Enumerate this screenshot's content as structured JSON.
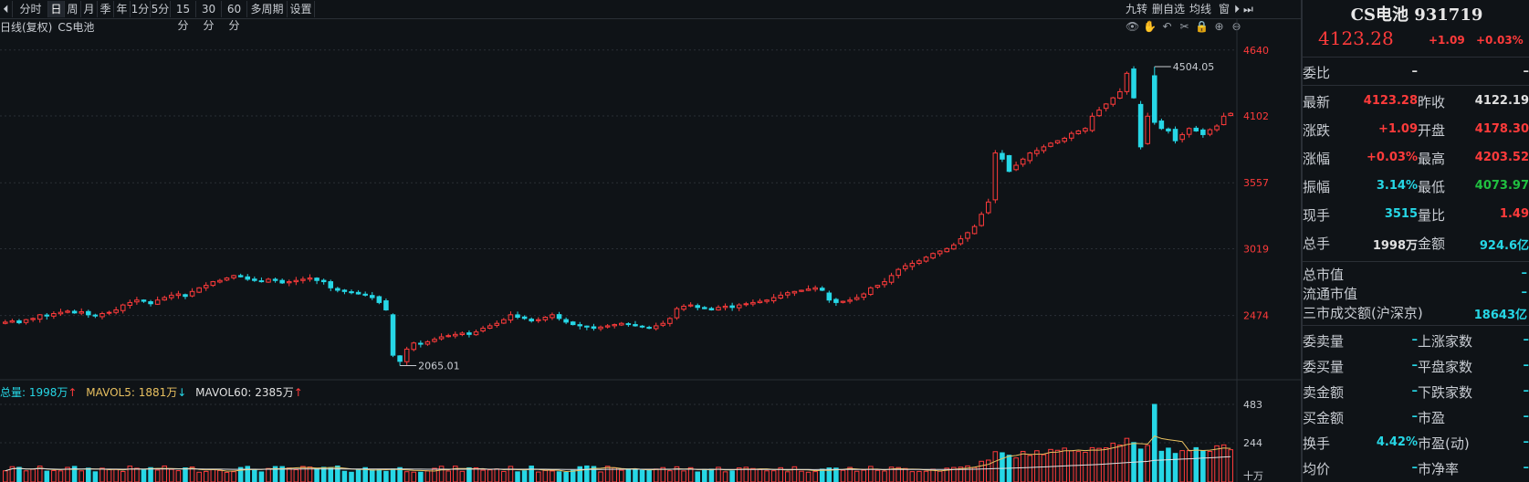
{
  "toolbar": {
    "items": [
      "分时",
      "日",
      "周",
      "月",
      "季",
      "年",
      "1分",
      "5分",
      "15分",
      "30分",
      "60分",
      "多周期",
      "设置"
    ],
    "active_index": 1,
    "right_items": [
      "九转",
      "删自选",
      "均线",
      "窗"
    ]
  },
  "chart": {
    "title": "日线(复权)",
    "subtitle": "CS电池",
    "icons": [
      "eye-icon",
      "hand-icon",
      "undo-icon",
      "scissors-icon",
      "lock-icon",
      "zoom-in-icon",
      "zoom-out-icon"
    ],
    "up_color": "#ff3b3b",
    "down_color": "#26d7e6",
    "max_label": "4504.05",
    "min_label": "2065.01"
  },
  "volume": {
    "total_label": "总量: 1998万",
    "total_arrow": "↑",
    "mavol5_label": "MAVOL5: 1881万",
    "mavol5_arrow": "↓",
    "mavol60_label": "MAVOL60: 2385万",
    "mavol60_arrow": "↑",
    "unit_label": "十万"
  },
  "chart_data": {
    "type": "candlestick",
    "price_axis_ticks": [
      4640,
      4102,
      3557,
      3019,
      2474
    ],
    "volume_axis_ticks": [
      483,
      244
    ],
    "price_range": [
      1950,
      4780
    ],
    "volume_range": [
      0,
      500
    ],
    "closes": [
      2420,
      2430,
      2415,
      2440,
      2450,
      2480,
      2470,
      2490,
      2500,
      2510,
      2495,
      2505,
      2480,
      2470,
      2490,
      2500,
      2520,
      2560,
      2580,
      2600,
      2590,
      2570,
      2600,
      2620,
      2640,
      2650,
      2630,
      2670,
      2700,
      2720,
      2750,
      2760,
      2780,
      2800,
      2790,
      2770,
      2760,
      2750,
      2770,
      2760,
      2740,
      2750,
      2760,
      2770,
      2780,
      2760,
      2750,
      2700,
      2680,
      2670,
      2660,
      2650,
      2640,
      2620,
      2580,
      2520,
      2150,
      2100,
      2200,
      2250,
      2240,
      2260,
      2280,
      2300,
      2310,
      2320,
      2330,
      2320,
      2340,
      2370,
      2390,
      2410,
      2440,
      2480,
      2460,
      2450,
      2430,
      2440,
      2460,
      2480,
      2450,
      2420,
      2400,
      2390,
      2380,
      2370,
      2380,
      2390,
      2400,
      2410,
      2400,
      2390,
      2380,
      2370,
      2390,
      2410,
      2450,
      2530,
      2550,
      2560,
      2540,
      2530,
      2520,
      2540,
      2550,
      2540,
      2560,
      2570,
      2580,
      2590,
      2600,
      2620,
      2640,
      2660,
      2670,
      2680,
      2690,
      2700,
      2680,
      2600,
      2580,
      2590,
      2600,
      2620,
      2650,
      2700,
      2720,
      2750,
      2800,
      2850,
      2880,
      2900,
      2920,
      2950,
      2980,
      3000,
      3020,
      3050,
      3100,
      3150,
      3200,
      3300,
      3400,
      3800,
      3750,
      3650,
      3700,
      3750,
      3800,
      3820,
      3850,
      3880,
      3900,
      3920,
      3960,
      3980,
      4000,
      4100,
      4150,
      4200,
      4250,
      4300,
      4450,
      4250,
      3850,
      4100,
      4050,
      4000,
      3980,
      3900,
      3950,
      4000,
      3980,
      3950,
      3990,
      4020,
      4100,
      4123
    ]
  },
  "panel": {
    "name": "CS电池 931719",
    "price": "4123.28",
    "change": "+1.09",
    "change_pct": "+0.03%",
    "weibi_label": "委比",
    "weibi_v1": "–",
    "weibi_v2": "–",
    "rows": [
      {
        "l1": "最新",
        "v1": "4123.28",
        "c1": "red",
        "l2": "昨收",
        "v2": "4122.19",
        "c2": "white"
      },
      {
        "l1": "涨跌",
        "v1": "+1.09",
        "c1": "red",
        "l2": "开盘",
        "v2": "4178.30",
        "c2": "red"
      },
      {
        "l1": "涨幅",
        "v1": "+0.03%",
        "c1": "red",
        "l2": "最高",
        "v2": "4203.52",
        "c2": "red"
      },
      {
        "l1": "振幅",
        "v1": "3.14%",
        "c1": "cyan",
        "l2": "最低",
        "v2": "4073.97",
        "c2": "green"
      },
      {
        "l1": "现手",
        "v1": "3515",
        "c1": "cyan",
        "l2": "量比",
        "v2": "1.49",
        "c2": "red"
      },
      {
        "l1": "总手",
        "v1": "1998万",
        "c1": "white",
        "l2": "金额",
        "v2": "924.6亿",
        "c2": "cyan"
      }
    ],
    "single_rows": [
      {
        "l": "总市值",
        "v": "–"
      },
      {
        "l": "流通市值",
        "v": "–"
      },
      {
        "l": "三市成交额(沪深京)",
        "v": "18643亿"
      }
    ],
    "double_rows": [
      {
        "l1": "委卖量",
        "v1": "–",
        "l2": "上涨家数",
        "v2": "–"
      },
      {
        "l1": "委买量",
        "v1": "–",
        "l2": "平盘家数",
        "v2": "–"
      },
      {
        "l1": "卖金额",
        "v1": "–",
        "l2": "下跌家数",
        "v2": "–"
      },
      {
        "l1": "买金额",
        "v1": "–",
        "l2": "市盈",
        "v2": "–"
      },
      {
        "l1": "换手",
        "v1": "4.42%",
        "l2": "市盈(动)",
        "v2": "–"
      },
      {
        "l1": "均价",
        "v1": "–",
        "l2": "市净率",
        "v2": "–"
      }
    ]
  }
}
